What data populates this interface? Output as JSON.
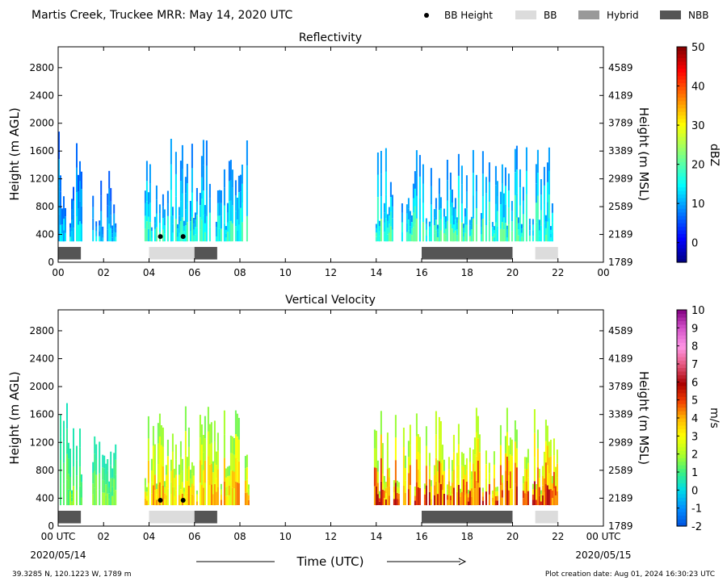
{
  "figure": {
    "title": "Martis Creek, Truckee MRR:  May 14, 2020 UTC",
    "legend": [
      {
        "label": "BB Height",
        "color": "#000000",
        "marker": "dot"
      },
      {
        "label": "BB",
        "color": "#dcdcdc",
        "marker": "swatch"
      },
      {
        "label": "Hybrid",
        "color": "#999999",
        "marker": "swatch"
      },
      {
        "label": "NBB",
        "color": "#555555",
        "marker": "swatch"
      }
    ],
    "xlabel": "Time (UTC)",
    "start_date": "2020/05/14",
    "end_date": "2020/05/15",
    "location": "39.3285 N, 120.1223 W, 1789 m",
    "creation_date": "Plot creation date: Aug 01, 2024 16:30:23 UTC"
  },
  "chart_data": [
    {
      "type": "heatmap",
      "title": "Reflectivity",
      "ylabel": "Height (m AGL)",
      "ylabel_right": "Height (m MSL)",
      "colorbar_label": "dBZ",
      "colorbar_ticks": [
        0,
        10,
        20,
        30,
        40,
        50
      ],
      "colorbar_range": [
        -5,
        50
      ],
      "colormap": "jet",
      "xlim": [
        0,
        24
      ],
      "xticks": [
        "00",
        "02",
        "04",
        "06",
        "08",
        "10",
        "12",
        "14",
        "16",
        "18",
        "20",
        "22",
        "00"
      ],
      "ylim": [
        0,
        3100
      ],
      "yticks_left": [
        0,
        400,
        800,
        1200,
        1600,
        2000,
        2400,
        2800
      ],
      "yticks_right": [
        1789,
        2189,
        2589,
        2989,
        3389,
        3789,
        4189,
        4589
      ],
      "precip_periods": [
        {
          "start": 0.0,
          "end": 1.0,
          "top": 2000,
          "low": 4,
          "high": 16
        },
        {
          "start": 1.5,
          "end": 2.5,
          "top": 1350,
          "low": 4,
          "high": 16
        },
        {
          "start": 3.8,
          "end": 8.4,
          "top": 1800,
          "low": 6,
          "high": 20
        },
        {
          "start": 13.9,
          "end": 22.0,
          "top": 1700,
          "low": 6,
          "high": 22
        }
      ],
      "bb_heights": [
        {
          "time": 4.5,
          "height": 370
        },
        {
          "time": 5.5,
          "height": 370
        }
      ],
      "bb_class_bars": [
        {
          "start": 0.0,
          "end": 1.0,
          "class": "NBB"
        },
        {
          "start": 4.0,
          "end": 6.0,
          "class": "BB"
        },
        {
          "start": 6.0,
          "end": 7.0,
          "class": "NBB"
        },
        {
          "start": 16.0,
          "end": 20.0,
          "class": "NBB"
        },
        {
          "start": 21.0,
          "end": 22.0,
          "class": "BB"
        }
      ]
    },
    {
      "type": "heatmap",
      "title": "Vertical Velocity",
      "ylabel": "Height (m AGL)",
      "ylabel_right": "Height (m MSL)",
      "colorbar_label": "m/s",
      "colorbar_ticks": [
        -2,
        -1,
        0,
        1,
        2,
        3,
        4,
        5,
        6,
        7,
        8,
        9,
        10
      ],
      "colorbar_range": [
        -2,
        10
      ],
      "colormap": "velocity",
      "xlim": [
        0,
        24
      ],
      "xticks": [
        "00 UTC",
        "02",
        "04",
        "06",
        "08",
        "10",
        "12",
        "14",
        "16",
        "18",
        "20",
        "22",
        "00 UTC"
      ],
      "ylim": [
        0,
        3100
      ],
      "yticks_left": [
        0,
        400,
        800,
        1200,
        1600,
        2000,
        2400,
        2800
      ],
      "yticks_right": [
        1789,
        2189,
        2589,
        2989,
        3389,
        3789,
        4189,
        4589
      ],
      "precip_periods": [
        {
          "start": 0.0,
          "end": 1.0,
          "top": 2000,
          "low": 0.2,
          "high": 2.0
        },
        {
          "start": 1.5,
          "end": 2.5,
          "top": 1350,
          "low": 0.2,
          "high": 2.0
        },
        {
          "start": 3.8,
          "end": 8.4,
          "top": 1800,
          "low": 1.0,
          "high": 4.5
        },
        {
          "start": 13.9,
          "end": 22.0,
          "top": 1700,
          "low": 1.0,
          "high": 6.0
        }
      ],
      "bb_heights": [
        {
          "time": 4.5,
          "height": 370
        },
        {
          "time": 5.5,
          "height": 370
        }
      ],
      "bb_class_bars": [
        {
          "start": 0.0,
          "end": 1.0,
          "class": "NBB"
        },
        {
          "start": 4.0,
          "end": 6.0,
          "class": "BB"
        },
        {
          "start": 6.0,
          "end": 7.0,
          "class": "NBB"
        },
        {
          "start": 16.0,
          "end": 20.0,
          "class": "NBB"
        },
        {
          "start": 21.0,
          "end": 22.0,
          "class": "BB"
        }
      ]
    }
  ]
}
